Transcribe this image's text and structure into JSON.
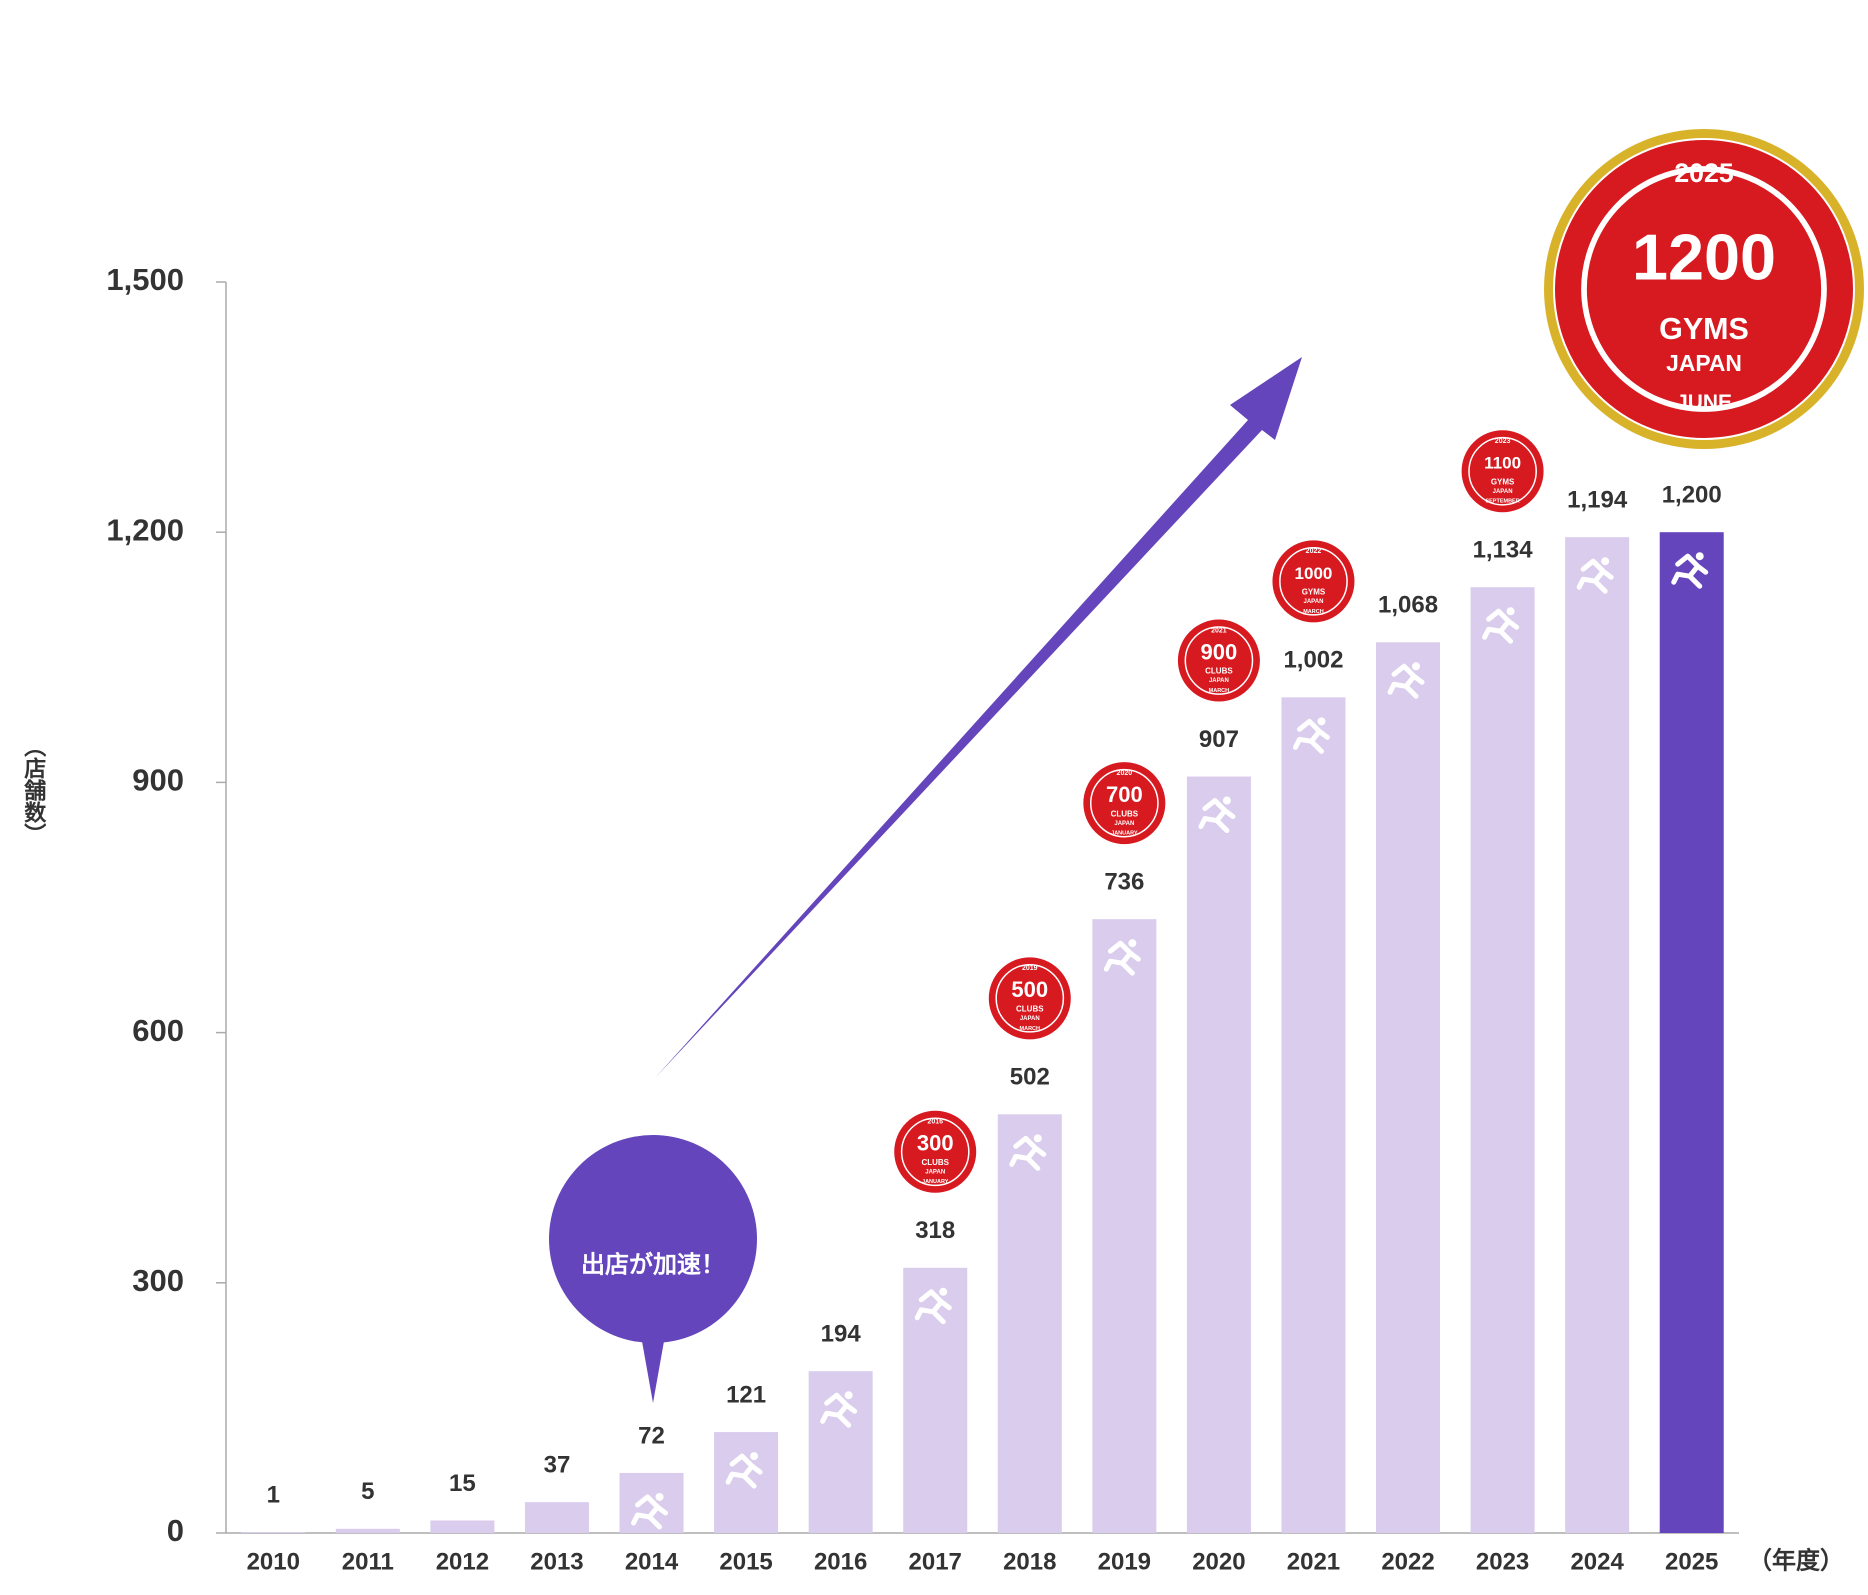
{
  "chart_data": {
    "type": "bar",
    "y_label": "（店舗数）",
    "x_unit": "（年度）",
    "callout": "出店が加速！",
    "categories": [
      "2010",
      "2011",
      "2012",
      "2013",
      "2014",
      "2015",
      "2016",
      "2017",
      "2018",
      "2019",
      "2020",
      "2021",
      "2022",
      "2023",
      "2024",
      "2025"
    ],
    "values": [
      1,
      5,
      15,
      37,
      72,
      121,
      194,
      318,
      502,
      736,
      907,
      1002,
      1068,
      1134,
      1194,
      1200
    ],
    "value_labels": [
      "1",
      "5",
      "15",
      "37",
      "72",
      "121",
      "194",
      "318",
      "502",
      "736",
      "907",
      "1,002",
      "1,068",
      "1,134",
      "1,194",
      "1,200"
    ],
    "color": "#d9cced",
    "highlight_color": "#6445bb",
    "ylim": [
      0,
      1500
    ],
    "yticks": [
      0,
      300,
      600,
      900,
      {
        "value": 1200,
        "label": "1,200"
      },
      {
        "value": 1500,
        "label": "1,500"
      }
    ],
    "milestones": [
      {
        "year": "2016",
        "number": "300",
        "unit": "CLUBS",
        "country": "JAPAN",
        "month": "JANUARY"
      },
      {
        "year": "2019",
        "number": "500",
        "unit": "CLUBS",
        "country": "JAPAN",
        "month": "MARCH"
      },
      {
        "year": "2020",
        "number": "700",
        "unit": "CLUBS",
        "country": "JAPAN",
        "month": "JANUARY"
      },
      {
        "year": "2021",
        "number": "900",
        "unit": "CLUBS",
        "country": "JAPAN",
        "month": "MARCH"
      },
      {
        "year": "2022",
        "number": "1000",
        "unit": "GYMS",
        "country": "JAPAN",
        "month": "MARCH"
      },
      {
        "year": "2023",
        "number": "1100",
        "unit": "GYMS",
        "country": "JAPAN",
        "month": "SEPTEMBER"
      },
      {
        "year": "2025",
        "number": "1200",
        "unit": "GYMS",
        "country": "JAPAN",
        "month": "JUNE"
      }
    ]
  }
}
